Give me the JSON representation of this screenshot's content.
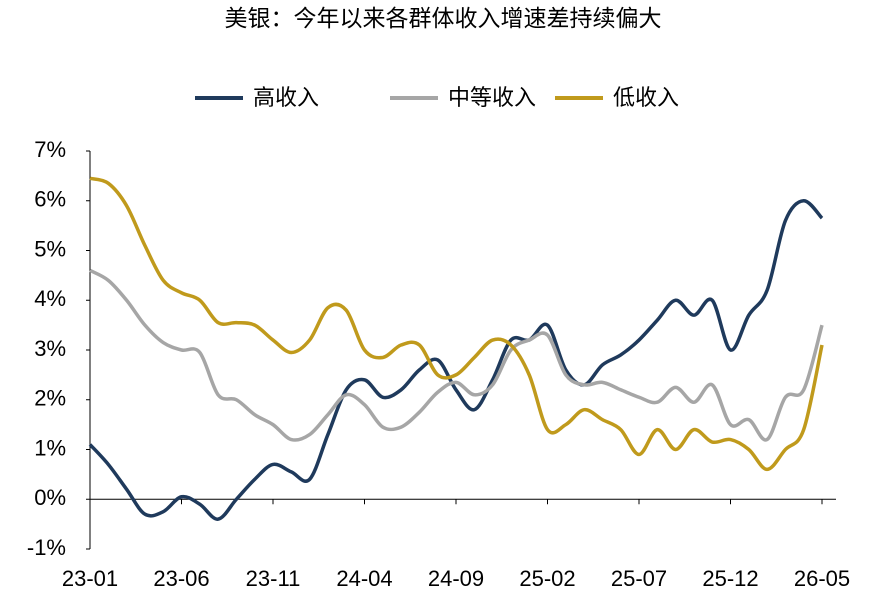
{
  "chart_data": {
    "type": "line",
    "title": "美银：今年以来各群体收入增速差持续偏大",
    "categories": [
      "23-01",
      null,
      null,
      null,
      null,
      "23-06",
      null,
      null,
      null,
      null,
      "23-11",
      null,
      null,
      null,
      null,
      "24-04",
      null,
      null,
      null,
      null,
      "24-09",
      null,
      null,
      null,
      null,
      "25-02",
      null,
      null,
      null,
      null,
      "25-07",
      null,
      null,
      null,
      null,
      "25-12",
      null,
      null,
      null,
      null,
      "26-05"
    ],
    "series": [
      {
        "name": "高收入",
        "color": "#1f3a5c",
        "values": [
          1.1,
          0.7,
          0.2,
          -0.3,
          -0.25,
          0.05,
          -0.1,
          -0.4,
          0.0,
          0.4,
          0.7,
          0.55,
          0.4,
          1.3,
          2.2,
          2.4,
          2.05,
          2.2,
          2.6,
          2.8,
          2.2,
          1.8,
          2.4,
          3.2,
          3.2,
          3.5,
          2.6,
          2.3,
          2.7,
          2.9,
          3.2,
          3.6,
          4.0,
          3.7,
          4.0,
          3.0,
          3.7,
          4.2,
          5.6,
          6.0,
          5.65
        ]
      },
      {
        "name": "中等收入",
        "color": "#a6a6a6",
        "values": [
          4.6,
          4.4,
          4.0,
          3.5,
          3.15,
          3.0,
          2.95,
          2.1,
          2.0,
          1.7,
          1.5,
          1.2,
          1.3,
          1.7,
          2.1,
          1.9,
          1.45,
          1.45,
          1.75,
          2.15,
          2.35,
          2.1,
          2.3,
          3.0,
          3.2,
          3.3,
          2.5,
          2.3,
          2.35,
          2.2,
          2.05,
          1.95,
          2.25,
          1.95,
          2.3,
          1.5,
          1.6,
          1.2,
          2.05,
          2.2,
          3.5
        ]
      },
      {
        "name": "低收入",
        "color": "#c09a1c",
        "values": [
          6.45,
          6.35,
          5.9,
          5.1,
          4.4,
          4.15,
          4.0,
          3.55,
          3.55,
          3.5,
          3.2,
          2.95,
          3.2,
          3.85,
          3.8,
          3.0,
          2.85,
          3.1,
          3.1,
          2.5,
          2.5,
          2.85,
          3.2,
          3.1,
          2.5,
          1.4,
          1.5,
          1.8,
          1.6,
          1.4,
          0.9,
          1.4,
          1.0,
          1.4,
          1.15,
          1.2,
          1.0,
          0.6,
          1.0,
          1.4,
          3.1
        ]
      }
    ],
    "ylim": [
      -1,
      7
    ],
    "yticks": [
      {
        "value": -1,
        "label": "-1%"
      },
      {
        "value": 0,
        "label": "0%"
      },
      {
        "value": 1,
        "label": "1%"
      },
      {
        "value": 2,
        "label": "2%"
      },
      {
        "value": 3,
        "label": "3%"
      },
      {
        "value": 4,
        "label": "4%"
      },
      {
        "value": 5,
        "label": "5%"
      },
      {
        "value": 6,
        "label": "6%"
      },
      {
        "value": 7,
        "label": "7%"
      }
    ],
    "legend": "top",
    "grid": false
  }
}
